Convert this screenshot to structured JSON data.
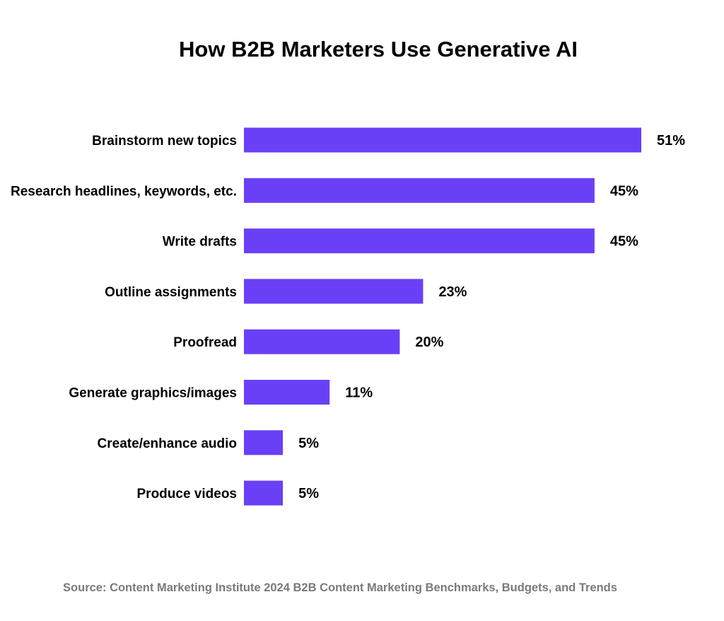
{
  "chart_data": {
    "type": "bar",
    "orientation": "horizontal",
    "title": "How B2B Marketers Use Generative AI",
    "categories": [
      "Brainstorm new topics",
      "Research headlines, keywords, etc.",
      "Write drafts",
      "Outline assignments",
      "Proofread",
      "Generate graphics/images",
      "Create/enhance audio",
      "Produce videos"
    ],
    "values": [
      51,
      45,
      45,
      23,
      20,
      11,
      5,
      5
    ],
    "value_labels": [
      "51%",
      "45%",
      "45%",
      "23%",
      "20%",
      "11%",
      "5%",
      "5%"
    ],
    "unit": "%",
    "xlim": [
      0,
      51
    ],
    "grid": false,
    "bar_color": "#6A40F6",
    "source": "Source: Content Marketing Institute 2024 B2B Content Marketing Benchmarks, Budgets, and Trends"
  }
}
